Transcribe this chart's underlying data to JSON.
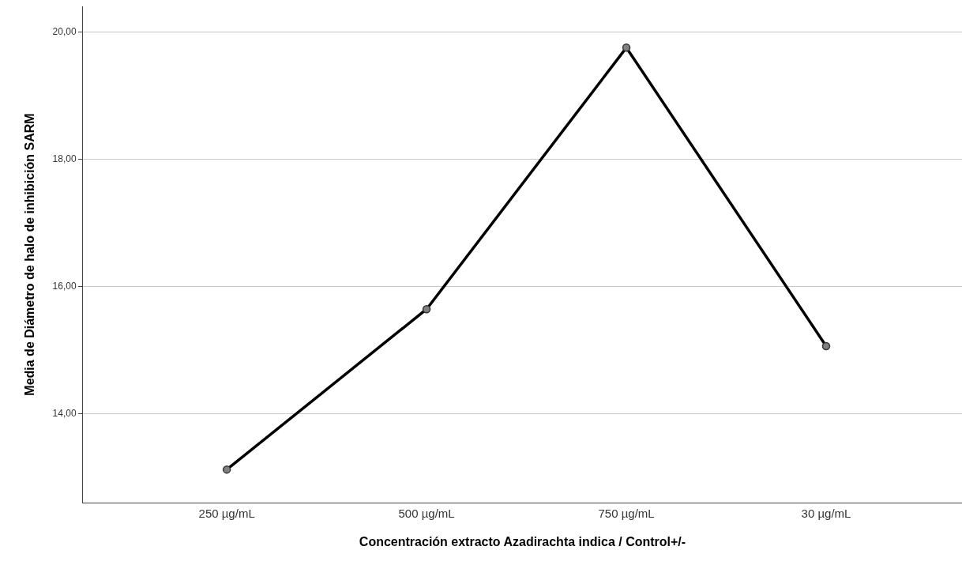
{
  "chart_data": {
    "type": "line",
    "xlabel": "Concentración extracto Azadirachta indica / Control+/-",
    "ylabel": "Media de Diámetro de halo de inhibición SARM",
    "categories": [
      "250 µg/mL",
      "500 µg/mL",
      "750 µg/mL",
      "30 µg/mL"
    ],
    "series": [
      {
        "color": "#000000",
        "values": [
          13.12,
          15.64,
          19.75,
          15.06
        ]
      }
    ],
    "ylim": [
      12.6,
      20.4
    ],
    "yticks": [
      {
        "value": 14,
        "label": "14,00"
      },
      {
        "value": 16,
        "label": "16,00"
      },
      {
        "value": 18,
        "label": "18,00"
      },
      {
        "value": 20,
        "label": "20,00"
      }
    ],
    "grid": "y",
    "marker": "circle",
    "line_style": "solid"
  }
}
